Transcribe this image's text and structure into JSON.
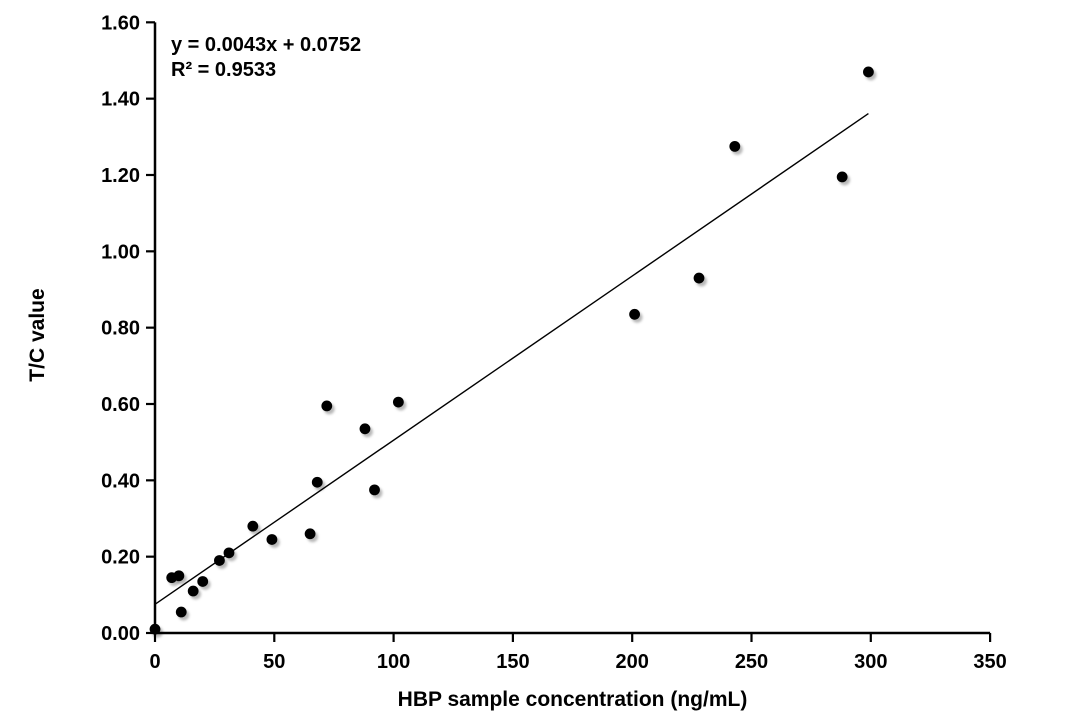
{
  "annotation": {
    "equation": "y = 0.0043x + 0.0752",
    "r_squared": "R² = 0.9533"
  },
  "chart_data": {
    "type": "scatter",
    "title": "",
    "xlabel": "HBP sample concentration (ng/mL)",
    "ylabel": "T/C value",
    "xlim": [
      0,
      350
    ],
    "ylim": [
      0,
      1.6
    ],
    "xticks": [
      0,
      50,
      100,
      150,
      200,
      250,
      300,
      350
    ],
    "ytick_labels": [
      "0.00",
      "0.20",
      "0.40",
      "0.60",
      "0.80",
      "1.00",
      "1.20",
      "1.40",
      "1.60"
    ],
    "grid": false,
    "legend": "none",
    "marker_color": "#000000",
    "axis_color": "#000000",
    "points": [
      [
        0,
        0.01
      ],
      [
        7,
        0.145
      ],
      [
        10,
        0.15
      ],
      [
        11,
        0.055
      ],
      [
        16,
        0.11
      ],
      [
        20,
        0.135
      ],
      [
        27,
        0.19
      ],
      [
        31,
        0.21
      ],
      [
        41,
        0.28
      ],
      [
        49,
        0.245
      ],
      [
        65,
        0.26
      ],
      [
        68,
        0.395
      ],
      [
        72,
        0.595
      ],
      [
        88,
        0.535
      ],
      [
        92,
        0.375
      ],
      [
        102,
        0.605
      ],
      [
        201,
        0.835
      ],
      [
        228,
        0.93
      ],
      [
        243,
        1.275
      ],
      [
        288,
        1.195
      ],
      [
        299,
        1.47
      ]
    ],
    "trendline": {
      "slope": 0.0043,
      "intercept": 0.0752,
      "x_start": 0,
      "x_end": 299,
      "r_squared": 0.9533
    }
  }
}
